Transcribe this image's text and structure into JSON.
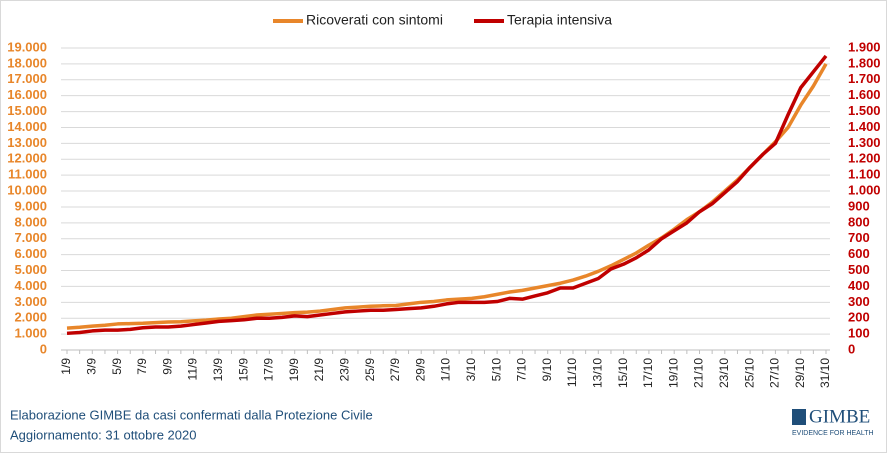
{
  "chart_data": {
    "type": "line",
    "categories": [
      "1/9",
      null,
      "3/9",
      null,
      "5/9",
      null,
      "7/9",
      null,
      "9/9",
      null,
      "11/9",
      null,
      "13/9",
      null,
      "15/9",
      null,
      "17/9",
      null,
      "19/9",
      null,
      "21/9",
      null,
      "23/9",
      null,
      "25/9",
      null,
      "27/9",
      null,
      "29/9",
      null,
      "1/10",
      null,
      "3/10",
      null,
      "5/10",
      null,
      "7/10",
      null,
      "9/10",
      null,
      "11/10",
      null,
      "13/10",
      null,
      "15/10",
      null,
      "17/10",
      null,
      "19/10",
      null,
      "21/10",
      null,
      "23/10",
      null,
      "25/10",
      null,
      "27/10",
      null,
      "29/10",
      null,
      "31/10"
    ],
    "series": [
      {
        "name": "Ricoverati con sintomi",
        "color": "#e8862a",
        "axis": "y",
        "values": [
          1380,
          1430,
          1500,
          1560,
          1640,
          1660,
          1680,
          1720,
          1760,
          1780,
          1830,
          1880,
          1950,
          2000,
          2100,
          2200,
          2250,
          2300,
          2350,
          2380,
          2450,
          2550,
          2650,
          2700,
          2750,
          2780,
          2800,
          2900,
          3000,
          3050,
          3150,
          3200,
          3250,
          3350,
          3500,
          3650,
          3750,
          3900,
          4050,
          4200,
          4400,
          4650,
          4950,
          5300,
          5700,
          6100,
          6600,
          7050,
          7600,
          8200,
          8700,
          9300,
          10000,
          10700,
          11500,
          12300,
          13100,
          14000,
          15400,
          16600,
          18000
        ]
      },
      {
        "name": "Terapia intensiva",
        "color": "#c00000",
        "axis": "y2",
        "values": [
          105,
          110,
          120,
          125,
          125,
          130,
          140,
          145,
          145,
          150,
          160,
          170,
          180,
          185,
          190,
          200,
          200,
          205,
          215,
          210,
          220,
          230,
          240,
          245,
          250,
          250,
          255,
          260,
          265,
          275,
          290,
          300,
          300,
          300,
          305,
          325,
          320,
          340,
          360,
          390,
          390,
          420,
          450,
          510,
          540,
          580,
          630,
          700,
          750,
          800,
          870,
          920,
          990,
          1060,
          1150,
          1230,
          1300,
          1480,
          1650,
          1750,
          1850
        ]
      }
    ],
    "ylim": [
      0,
      19000
    ],
    "yticks": [
      0,
      {
        "value": 1000,
        "label": "1.000"
      },
      {
        "value": 2000,
        "label": "2.000"
      },
      {
        "value": 3000,
        "label": "3.000"
      },
      {
        "value": 4000,
        "label": "4.000"
      },
      {
        "value": 5000,
        "label": "5.000"
      },
      {
        "value": 6000,
        "label": "6.000"
      },
      {
        "value": 7000,
        "label": "7.000"
      },
      {
        "value": 8000,
        "label": "8.000"
      },
      {
        "value": 9000,
        "label": "9.000"
      },
      {
        "value": 10000,
        "label": "10.000"
      },
      {
        "value": 11000,
        "label": "11.000"
      },
      {
        "value": 12000,
        "label": "12.000"
      },
      {
        "value": 13000,
        "label": "13.000"
      },
      {
        "value": 14000,
        "label": "14.000"
      },
      {
        "value": 15000,
        "label": "15.000"
      },
      {
        "value": 16000,
        "label": "16.000"
      },
      {
        "value": 17000,
        "label": "17.000"
      },
      {
        "value": 18000,
        "label": "18.000"
      },
      {
        "value": 19000,
        "label": "19.000"
      }
    ],
    "y2lim": [
      0,
      1900
    ],
    "y2ticks": [
      0,
      100,
      200,
      300,
      400,
      500,
      600,
      700,
      800,
      900,
      {
        "value": 1000,
        "label": "1.000"
      },
      {
        "value": 1100,
        "label": "1.100"
      },
      {
        "value": 1200,
        "label": "1.200"
      },
      {
        "value": 1300,
        "label": "1.300"
      },
      {
        "value": 1400,
        "label": "1.400"
      },
      {
        "value": 1500,
        "label": "1.500"
      },
      {
        "value": 1600,
        "label": "1.600"
      },
      {
        "value": 1700,
        "label": "1.700"
      },
      {
        "value": 1800,
        "label": "1.800"
      },
      {
        "value": 1900,
        "label": "1.900"
      }
    ],
    "grid": true,
    "legend": "top"
  },
  "footer": {
    "lines": [
      "Elaborazione GIMBE da casi confermati dalla Protezione Civile",
      "Aggiornamento: 31 ottobre 2020"
    ],
    "logo": "GIMBE",
    "logo_sub": "EVIDENCE FOR HEALTH"
  }
}
